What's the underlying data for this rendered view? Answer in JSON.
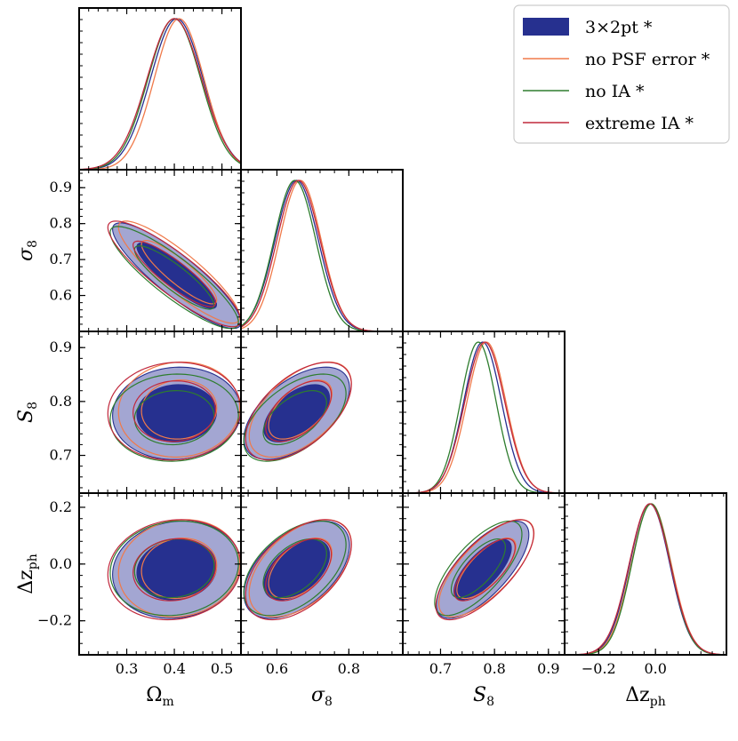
{
  "chart_data": {
    "type": "corner",
    "parameters": [
      {
        "key": "Om",
        "label_main": "Ω",
        "label_sub": "m",
        "italic": false,
        "range": [
          0.2,
          0.54
        ],
        "ticks": [
          0.3,
          0.4,
          0.5
        ],
        "tick_labels": [
          "0.3",
          "0.4",
          "0.5"
        ]
      },
      {
        "key": "s8",
        "label_main": "σ",
        "label_sub": "8",
        "italic": true,
        "range": [
          0.5,
          0.95
        ],
        "ticks": [
          0.6,
          0.7,
          0.8,
          0.9
        ],
        "tick_labels": [
          "0.6",
          "0.7",
          "0.8",
          "0.9"
        ],
        "x_ticks": [
          0.6,
          0.8
        ],
        "x_tick_labels": [
          "0.6",
          "0.8"
        ]
      },
      {
        "key": "S8",
        "label_main": "S",
        "label_sub": "8",
        "italic": true,
        "range": [
          0.63,
          0.93
        ],
        "ticks": [
          0.7,
          0.8,
          0.9
        ],
        "tick_labels": [
          "0.7",
          "0.8",
          "0.9"
        ]
      },
      {
        "key": "dz",
        "label_main": "Δz",
        "label_sub": "ph",
        "italic": false,
        "range": [
          -0.32,
          0.25
        ],
        "ticks": [
          -0.2,
          0.0,
          0.2
        ],
        "tick_labels": [
          "−0.2",
          "0.0",
          "0.2"
        ],
        "x_ticks": [
          -0.2,
          0.0
        ],
        "x_tick_labels": [
          "−0.2",
          "0.0"
        ]
      }
    ],
    "series": [
      {
        "name": "3×2pt *",
        "color": "#26308f",
        "fill_inner": "#26308f",
        "fill_outer": "#a3a6d2",
        "filled": true,
        "mean": {
          "Om": 0.405,
          "s8": 0.655,
          "S8": 0.778,
          "dz": -0.02
        },
        "sd": {
          "Om": 0.055,
          "s8": 0.06,
          "S8": 0.035,
          "dz": 0.07
        }
      },
      {
        "name": "no PSF error *",
        "color": "#f07a4a",
        "filled": false,
        "mean": {
          "Om": 0.41,
          "s8": 0.665,
          "S8": 0.785,
          "dz": -0.015
        },
        "sd": {
          "Om": 0.052,
          "s8": 0.058,
          "S8": 0.036,
          "dz": 0.07
        }
      },
      {
        "name": "no IA *",
        "color": "#2e7d2e",
        "filled": false,
        "mean": {
          "Om": 0.4,
          "s8": 0.65,
          "S8": 0.77,
          "dz": -0.015
        },
        "sd": {
          "Om": 0.055,
          "s8": 0.058,
          "S8": 0.033,
          "dz": 0.068
        }
      },
      {
        "name": "extreme IA *",
        "color": "#c0283c",
        "filled": false,
        "mean": {
          "Om": 0.4,
          "s8": 0.66,
          "S8": 0.782,
          "dz": -0.02
        },
        "sd": {
          "Om": 0.057,
          "s8": 0.06,
          "S8": 0.037,
          "dz": 0.072
        }
      }
    ],
    "correlations": {
      "s8|Om": -0.88,
      "S8|Om": 0.05,
      "S8|s8": 0.55,
      "dz|Om": 0.1,
      "dz|s8": 0.5,
      "dz|S8": 0.72
    },
    "legend_position": "top-right",
    "grid": false
  }
}
